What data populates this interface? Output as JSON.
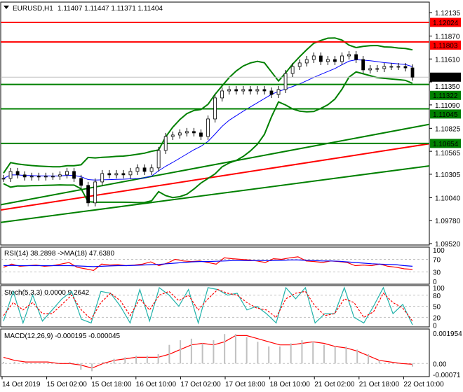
{
  "header": {
    "symbol": "EURUSD,H1",
    "ohlc": "1.11407 1.11447 1.11371 1.11404"
  },
  "colors": {
    "bull": "#000000",
    "bear": "#000000",
    "band": "#008000",
    "resistance": "#ff0000",
    "support": "#008000",
    "current": "#000000",
    "rsi": "#ff0000",
    "rsi_ma": "#0000ff",
    "stoch_main": "#20b2aa",
    "stoch_signal": "#ff0000",
    "macd_hist": "#c0c0c0",
    "macd_signal": "#ff0000"
  },
  "chart_data": [
    {
      "type": "candlestick",
      "title": "EURUSD,H1",
      "price_ticks": [
        "1.12135",
        "1.11870",
        "1.11610",
        "1.11350",
        "1.11090",
        "1.10825",
        "1.10565",
        "1.10305",
        "1.10040",
        "1.09780",
        "1.09520"
      ],
      "ylim": [
        1.0952,
        1.12135
      ],
      "time_labels": [
        "14 Oct 2019",
        "15 Oct 02:00",
        "15 Oct 18:00",
        "16 Oct 10:00",
        "17 Oct 02:00",
        "17 Oct 18:00",
        "18 Oct 10:00",
        "21 Oct 02:00",
        "21 Oct 18:00",
        "22 Oct 10:00"
      ],
      "closes": [
        1.10258,
        1.10337,
        1.10298,
        1.10274,
        1.10282,
        1.10274,
        1.10282,
        1.10282,
        1.10298,
        1.10337,
        1.10258,
        1.10179,
        1.09981,
        1.10218,
        1.10313,
        1.10298,
        1.10313,
        1.10298,
        1.10337,
        1.10377,
        1.10337,
        1.10377,
        1.10575,
        1.10733,
        1.10749,
        1.10773,
        1.10789,
        1.10773,
        1.10733,
        1.10931,
        1.11169,
        1.11248,
        1.11264,
        1.11248,
        1.11264,
        1.11248,
        1.11264,
        1.11248,
        1.11208,
        1.11264,
        1.11446,
        1.11525,
        1.11565,
        1.11604,
        1.11644,
        1.11581,
        1.11604,
        1.11581,
        1.11644,
        1.1166,
        1.11604,
        1.11486,
        1.11501,
        1.11501,
        1.11525,
        1.11525,
        1.11525,
        1.11509,
        1.11404
      ],
      "levels": [
        {
          "value": 1.12024,
          "label": "1.12024",
          "kind": "resistance"
        },
        {
          "value": 1.11803,
          "label": "1.11803",
          "kind": "resistance"
        },
        {
          "value": 1.11404,
          "label": "1.11404",
          "kind": "current"
        },
        {
          "value": 1.11322,
          "label": "1.11322",
          "kind": "support"
        },
        {
          "value": 1.11045,
          "label": "1.11045",
          "kind": "support"
        },
        {
          "value": 1.10654,
          "label": "1.10654",
          "kind": "support"
        }
      ],
      "trend_lines": [
        {
          "color": "#008000",
          "from": 1.0976,
          "to": 1.104
        },
        {
          "color": "#ff0000",
          "from": 1.099,
          "to": 1.1065
        },
        {
          "color": "#008000",
          "from": 1.0996,
          "to": 1.1087
        }
      ]
    },
    {
      "type": "line",
      "title": "RSI(14) 38.2898  ->MA(18) 47.6380",
      "ylim": [
        0,
        100
      ],
      "ticks": [
        "100",
        "70",
        "30",
        "0"
      ],
      "rsi": [
        45,
        55,
        48,
        50,
        52,
        48,
        50,
        55,
        60,
        45,
        40,
        35,
        55,
        52,
        53,
        50,
        52,
        55,
        62,
        50,
        58,
        70,
        65,
        63,
        65,
        60,
        55,
        75,
        72,
        70,
        68,
        65,
        60,
        72,
        70,
        75,
        78,
        65,
        63,
        60,
        65,
        63,
        60,
        50,
        52,
        50,
        55,
        48,
        45,
        40,
        38
      ],
      "ma": [
        50,
        51,
        50,
        50,
        50,
        50,
        50,
        50,
        50,
        49,
        48,
        47,
        48,
        49,
        50,
        50,
        51,
        52,
        53,
        54,
        56,
        58,
        60,
        62,
        63,
        63,
        64,
        65,
        66,
        66,
        66,
        66,
        66,
        66,
        67,
        68,
        68,
        67,
        66,
        65,
        65,
        64,
        62,
        60,
        58,
        56,
        55,
        54,
        53,
        50,
        48
      ]
    },
    {
      "type": "line",
      "title": "Stoch(5,3,3) 0.0000 9.2642",
      "ylim": [
        0,
        100
      ],
      "ticks": [
        "100",
        "80",
        "50",
        "20",
        "0"
      ],
      "main": [
        10,
        90,
        5,
        80,
        10,
        40,
        70,
        90,
        15,
        5,
        90,
        85,
        50,
        5,
        95,
        10,
        100,
        80,
        50,
        95,
        5,
        100,
        95,
        80,
        85,
        40,
        50,
        30,
        5,
        100,
        70,
        100,
        5,
        30,
        30,
        100,
        20,
        5,
        50,
        100,
        30,
        55,
        0
      ],
      "signal": [
        25,
        60,
        40,
        60,
        30,
        30,
        55,
        80,
        40,
        15,
        60,
        85,
        65,
        25,
        70,
        40,
        80,
        90,
        65,
        80,
        40,
        70,
        95,
        85,
        80,
        60,
        45,
        40,
        20,
        70,
        85,
        90,
        50,
        25,
        30,
        70,
        60,
        20,
        35,
        85,
        60,
        45,
        10
      ]
    },
    {
      "type": "bar",
      "title": "MACD(12,26,9) -0.000195 -0.000045",
      "ylim": [
        -0.00071,
        0.001954
      ],
      "ticks": [
        "0.001954",
        "0.00",
        "-0.00071"
      ],
      "histogram": [
        0.0001,
        0.0001,
        5e-05,
        0,
        0,
        5e-05,
        0.0001,
        -0.0004,
        -0.0005,
        0.0001,
        0.0003,
        0.0004,
        0.0005,
        0.0005,
        0.0006,
        0.0012,
        0.0015,
        0.0016,
        0.0013,
        0.0015,
        0.0019,
        0.0019,
        0.0017,
        0.0014,
        0.0011,
        0.0011,
        0.0013,
        0.0015,
        0.0014,
        0.0012,
        0.0011,
        0.0011,
        0.0009,
        0.0006,
        0.0002,
        0,
        0,
        -0.0002
      ],
      "signal": [
        0.0004,
        0.0002,
        0.0001,
        0.0001,
        0.0001,
        0,
        0,
        -0.0001,
        -0.0003,
        0,
        0.0002,
        0.0003,
        0.0004,
        0.0004,
        0.0004,
        0.0006,
        0.0009,
        0.0012,
        0.0013,
        0.0012,
        0.0014,
        0.0018,
        0.0018,
        0.0016,
        0.0014,
        0.0012,
        0.0012,
        0.0013,
        0.0014,
        0.0013,
        0.0011,
        0.001,
        0.0008,
        0.0005,
        0.0002,
        0.0001,
        0,
        -5e-05
      ]
    }
  ]
}
